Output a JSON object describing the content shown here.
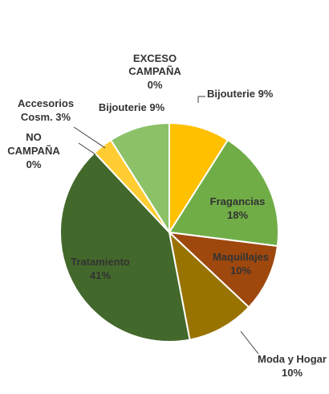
{
  "chart_data": {
    "type": "pie",
    "title": "",
    "slices": [
      {
        "label": "Bijouterie",
        "pct_text": "9%",
        "value": 9,
        "color": "#FFC000"
      },
      {
        "label": "Fragancias",
        "pct_text": "18%",
        "value": 18,
        "color": "#70AD47"
      },
      {
        "label": "Maquillajes",
        "pct_text": "10%",
        "value": 10,
        "color": "#9E480E"
      },
      {
        "label": "Moda y Hogar",
        "pct_text": "10%",
        "value": 10,
        "color": "#997300"
      },
      {
        "label": "Tratamiento",
        "pct_text": "41%",
        "value": 41,
        "color": "#43682B"
      },
      {
        "label": "NO CAMPAÑA",
        "pct_text": "0%",
        "value": 0,
        "color": "#698ED0"
      },
      {
        "label": "Accesorios Cosm.",
        "pct_text": "3%",
        "value": 3,
        "color": "#FFCD33"
      },
      {
        "label": "Bijouterie",
        "pct_text": "9%",
        "value": 9,
        "color": "#8CC168"
      },
      {
        "label": "EXCESO CAMPAÑA",
        "pct_text": "0%",
        "value": 0,
        "color": "#5B9BD5"
      }
    ]
  },
  "labels": {
    "exceso_l1": "EXCESO",
    "exceso_l2": "CAMPAÑA",
    "exceso_l3": "0%",
    "bijouterie_right": "Bijouterie 9%",
    "bijouterie_left": "Bijouterie 9%",
    "accesorios_l1": "Accesorios",
    "accesorios_l2": "Cosm. 3%",
    "nocampana_l1": "NO",
    "nocampana_l2": "CAMPAÑA",
    "nocampana_l3": "0%",
    "fragancias_l1": "Fragancias",
    "fragancias_l2": "18%",
    "maquillajes_l1": "Maquillajes",
    "maquillajes_l2": "10%",
    "tratamiento_l1": "Tratamiento",
    "tratamiento_l2": "41%",
    "moda_l1": "Moda y Hogar",
    "moda_l2": "10%"
  }
}
